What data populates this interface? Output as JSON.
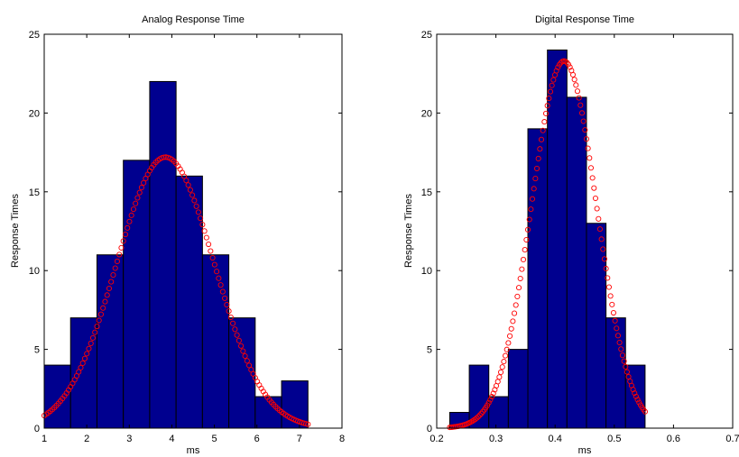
{
  "chart_data": [
    {
      "type": "bar",
      "title": "Analog Response Time",
      "xlabel": "ms",
      "ylabel": "Response Times",
      "xlim": [
        1,
        8
      ],
      "ylim": [
        0,
        25
      ],
      "xticks": [
        1,
        2,
        3,
        4,
        5,
        6,
        7,
        8
      ],
      "xtick_labels": [
        "1",
        "2",
        "3",
        "4",
        "5",
        "6",
        "7",
        "8"
      ],
      "yticks": [
        0,
        5,
        10,
        15,
        20,
        25
      ],
      "ytick_labels": [
        "0",
        "5",
        "10",
        "15",
        "20",
        "25"
      ],
      "bin_edges": [
        1.0,
        1.62,
        2.24,
        2.86,
        3.48,
        4.1,
        4.72,
        5.34,
        5.96,
        6.58,
        7.2
      ],
      "values": [
        4,
        7,
        11,
        17,
        22,
        16,
        11,
        7,
        2,
        3
      ],
      "bar_color": "#00008f",
      "fit": {
        "type": "normal",
        "mean": 3.85,
        "sd": 1.15,
        "peak": 17.2,
        "x_range": [
          1.0,
          7.2
        ],
        "marker": "circle",
        "color": "#ff0000"
      },
      "grid": false,
      "legend": "none"
    },
    {
      "type": "bar",
      "title": "Digital Response Time",
      "xlabel": "ms",
      "ylabel": "Response Times",
      "xlim": [
        0.2,
        0.7
      ],
      "ylim": [
        0,
        25
      ],
      "xticks": [
        0.2,
        0.3,
        0.4,
        0.5,
        0.6,
        0.7
      ],
      "xtick_labels": [
        "0.2",
        "0.3",
        "0.4",
        "0.5",
        "0.6",
        "0.7"
      ],
      "yticks": [
        0,
        5,
        10,
        15,
        20,
        25
      ],
      "ytick_labels": [
        "0",
        "5",
        "10",
        "15",
        "20",
        "25"
      ],
      "bin_edges": [
        0.222,
        0.255,
        0.288,
        0.321,
        0.354,
        0.387,
        0.42,
        0.453,
        0.486,
        0.519,
        0.552
      ],
      "values": [
        1,
        4,
        2,
        5,
        19,
        24,
        21,
        13,
        7,
        4
      ],
      "bar_color": "#00008f",
      "fit": {
        "type": "normal",
        "mean": 0.415,
        "sd": 0.055,
        "peak": 23.3,
        "x_range": [
          0.222,
          0.552
        ],
        "marker": "circle",
        "color": "#ff0000"
      },
      "grid": false,
      "legend": "none"
    }
  ]
}
